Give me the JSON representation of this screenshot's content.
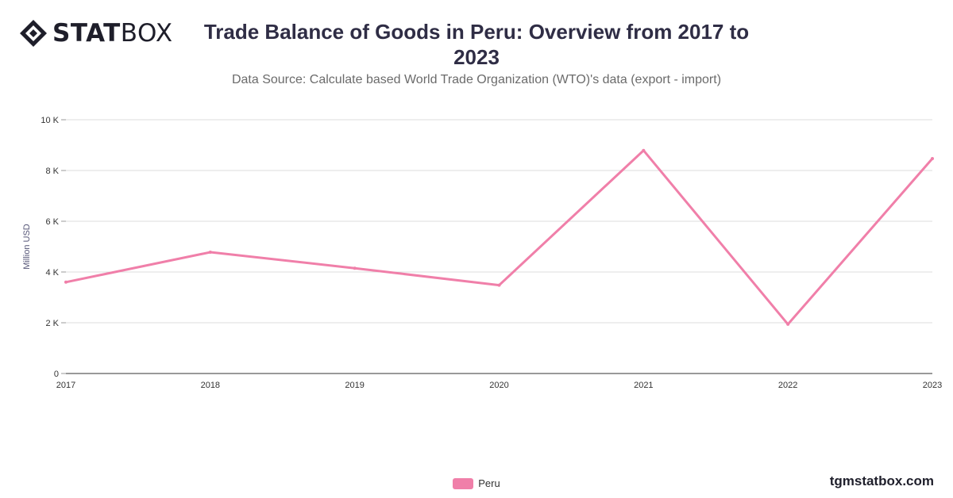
{
  "header": {
    "logo_bold": "STAT",
    "logo_light": "BOX",
    "title": "Trade Balance of Goods in Peru: Overview from 2017 to 2023",
    "subtitle": "Data Source: Calculate based World Trade Organization (WTO)'s data (export - import)"
  },
  "footer": {
    "brand": "tgmstatbox.com"
  },
  "colors": {
    "series": "#f07fa9",
    "grid": "#dddddd",
    "axis": "#333333"
  },
  "chart_data": {
    "type": "line",
    "title": "Trade Balance of Goods in Peru: Overview from 2017 to 2023",
    "subtitle": "Data Source: Calculate based World Trade Organization (WTO)'s data (export - import)",
    "xlabel": "",
    "ylabel": "Million USD",
    "x": [
      "2017",
      "2018",
      "2019",
      "2020",
      "2021",
      "2022",
      "2023"
    ],
    "ylim": [
      0,
      10000
    ],
    "yticks": [
      0,
      2000,
      4000,
      6000,
      8000,
      10000
    ],
    "ytick_labels": [
      "0",
      "2 K",
      "4 K",
      "6 K",
      "8 K",
      "10 K"
    ],
    "grid": true,
    "legend": "bottom-center",
    "series": [
      {
        "name": "Peru",
        "values": [
          3600,
          4780,
          4150,
          3480,
          8790,
          1940,
          8470
        ]
      }
    ]
  }
}
